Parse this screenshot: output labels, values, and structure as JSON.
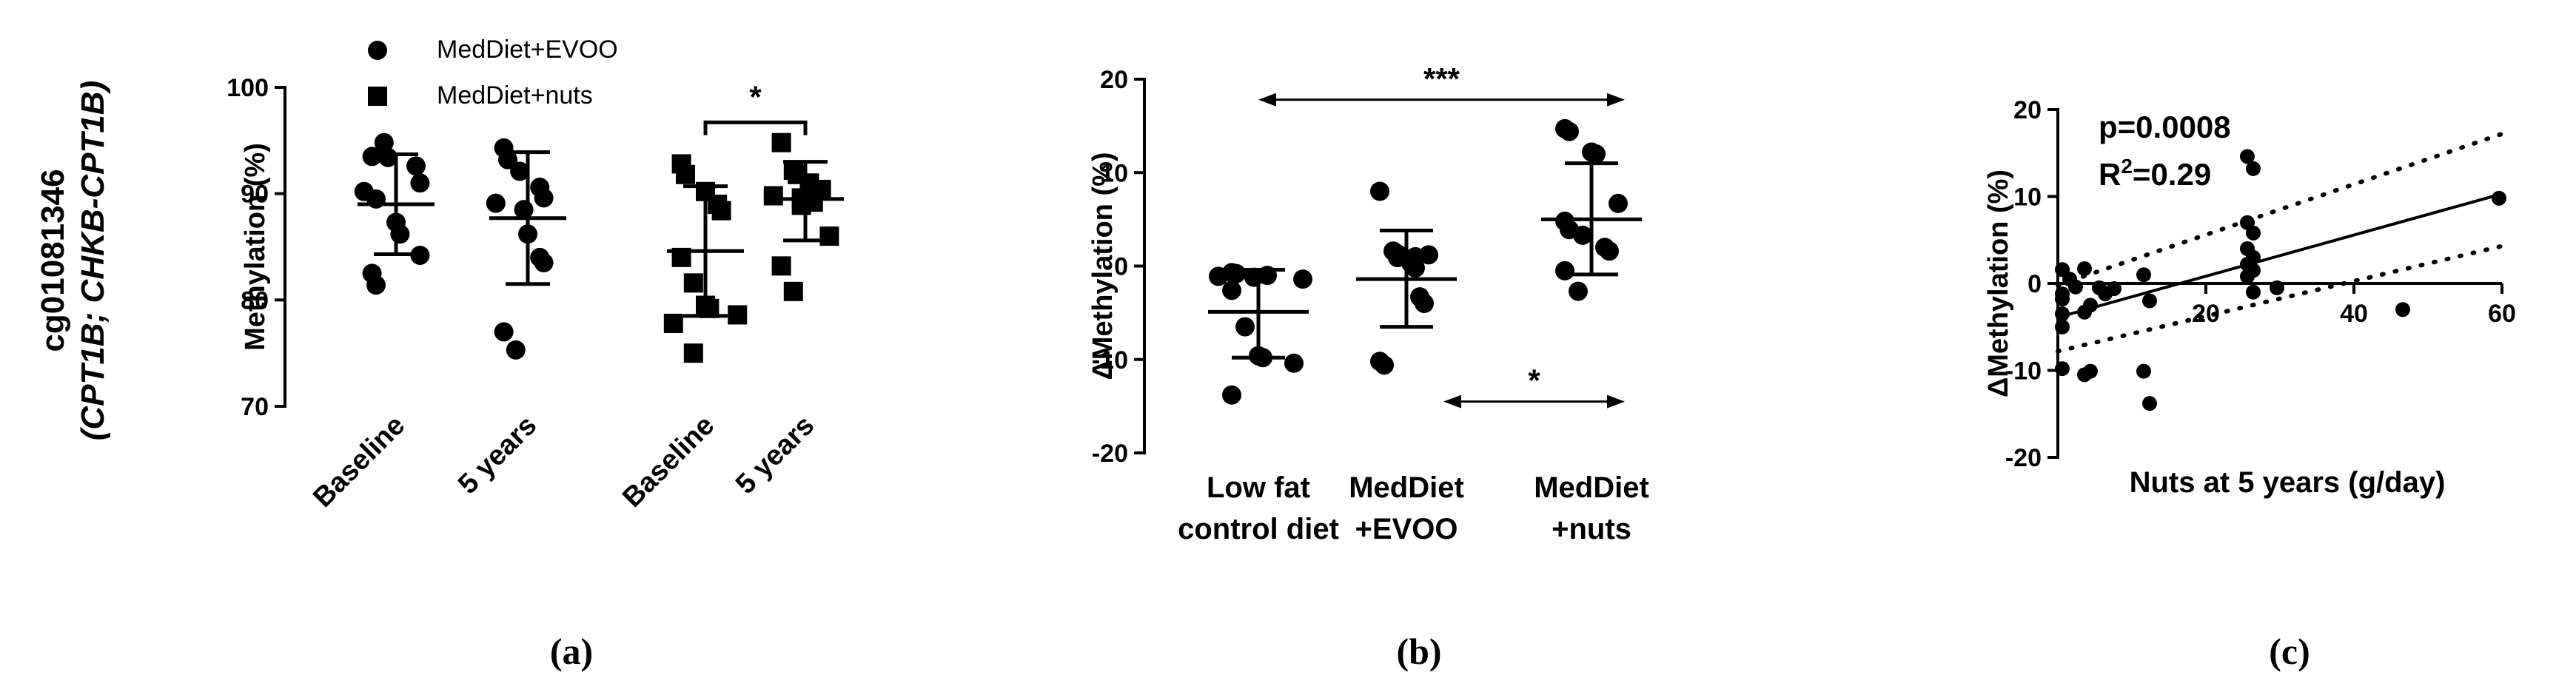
{
  "row_label": {
    "line1": "cg01081346",
    "line2": "(CPT1B; CHKB-CPT1B)"
  },
  "panel_labels": [
    "(a)",
    "(b)",
    "(c)"
  ],
  "chart_data": [
    {
      "id": "a",
      "type": "scatter",
      "title": "",
      "ylabel": "Methylation (%)",
      "xlabel": "",
      "ylim": [
        70,
        100
      ],
      "yticks": [
        70,
        80,
        90,
        100
      ],
      "categories": [
        "Baseline",
        "5 years",
        "Baseline",
        "5 years"
      ],
      "legend": [
        {
          "name": "MedDiet+EVOO",
          "marker": "circle"
        },
        {
          "name": "MedDiet+nuts",
          "marker": "square"
        }
      ],
      "series": [
        {
          "name": "MedDiet+EVOO",
          "category": "Baseline",
          "marker": "circle",
          "mean": 89.0,
          "sd_low": 84.3,
          "sd_high": 93.7,
          "values": [
            93.5,
            94.8,
            93.4,
            92.6,
            91.0,
            90.2,
            89.5,
            87.3,
            86.2,
            84.2,
            82.5,
            81.4
          ]
        },
        {
          "name": "MedDiet+EVOO",
          "category": "5 years",
          "marker": "circle",
          "mean": 87.7,
          "sd_low": 81.5,
          "sd_high": 93.9,
          "values": [
            94.3,
            93.2,
            92.1,
            90.6,
            89.6,
            89.1,
            88.5,
            86.2,
            84.0,
            83.5,
            77.0,
            75.3
          ]
        },
        {
          "name": "MedDiet+nuts",
          "category": "Baseline",
          "marker": "square",
          "mean": 84.6,
          "sd_low": 78.5,
          "sd_high": 90.7,
          "values": [
            92.8,
            91.8,
            90.2,
            89.0,
            88.4,
            84.0,
            81.6,
            79.5,
            79.2,
            78.6,
            77.8,
            75.0
          ]
        },
        {
          "name": "MedDiet+nuts",
          "category": "5 years",
          "marker": "square",
          "mean": 89.5,
          "sd_low": 85.6,
          "sd_high": 93.0,
          "values": [
            94.8,
            92.2,
            91.8,
            91.0,
            90.4,
            89.8,
            89.6,
            89.2,
            88.9,
            86.0,
            83.2,
            80.8
          ]
        }
      ],
      "annotations": [
        {
          "text": "*",
          "between": [
            "Baseline",
            "5 years"
          ],
          "group": "MedDiet+nuts"
        }
      ]
    },
    {
      "id": "b",
      "type": "scatter",
      "title": "",
      "ylabel": "ΔMethylation (%)",
      "xlabel": "",
      "ylim": [
        -20,
        20
      ],
      "yticks": [
        -20,
        -10,
        0,
        10,
        20
      ],
      "categories": [
        "Low fat control diet",
        "MedDiet +EVOO",
        "MedDiet +nuts"
      ],
      "category_lines": [
        [
          "Low fat",
          "control diet"
        ],
        [
          "MedDiet",
          "+EVOO"
        ],
        [
          "MedDiet",
          "+nuts"
        ]
      ],
      "series": [
        {
          "name": "Low fat control diet",
          "marker": "circle",
          "mean": -4.9,
          "sd_low": -9.8,
          "sd_high": -0.4,
          "values": [
            -0.7,
            -0.8,
            -1.0,
            -1.2,
            -1.4,
            -2.6,
            -6.5,
            -9.6,
            -9.8,
            -10.4,
            -13.8,
            -1.1
          ]
        },
        {
          "name": "MedDiet +EVOO",
          "marker": "circle",
          "mean": -1.4,
          "sd_low": -6.5,
          "sd_high": 3.8,
          "values": [
            8.0,
            1.6,
            1.3,
            1.2,
            1.0,
            0.9,
            0.3,
            -0.2,
            -3.3,
            -4.0,
            -10.2,
            -10.6
          ]
        },
        {
          "name": "MedDiet +nuts",
          "marker": "circle",
          "mean": 5.0,
          "sd_low": -0.9,
          "sd_high": 11.0,
          "values": [
            14.7,
            14.4,
            12.2,
            12.0,
            6.7,
            4.8,
            3.9,
            3.3,
            2.0,
            1.6,
            -0.5,
            -2.7
          ]
        }
      ],
      "annotations": [
        {
          "text": "***",
          "between": [
            "Low fat control diet",
            "MedDiet +nuts"
          ]
        },
        {
          "text": "*",
          "between": [
            "MedDiet +EVOO",
            "MedDiet +nuts"
          ]
        }
      ]
    },
    {
      "id": "c",
      "type": "scatter",
      "title": "",
      "xlabel": "Nuts at 5 years (g/day)",
      "ylabel": "ΔMethylation (%)",
      "xlim": [
        0,
        60
      ],
      "xticks": [
        20,
        40,
        60
      ],
      "ylim": [
        -20,
        20
      ],
      "yticks": [
        -20,
        -10,
        0,
        10,
        20
      ],
      "stats": {
        "p_text": "p=0.0008",
        "r2_prefix": "R",
        "r2_sup": "2",
        "r2_suffix": "=0.29"
      },
      "points": [
        {
          "x": 0,
          "y": 1.6
        },
        {
          "x": 0,
          "y": -1.2
        },
        {
          "x": 0,
          "y": -1.8
        },
        {
          "x": 0,
          "y": -3.5
        },
        {
          "x": 0,
          "y": -5.0
        },
        {
          "x": 0,
          "y": -9.8
        },
        {
          "x": 2,
          "y": 0.5
        },
        {
          "x": 2,
          "y": -0.4
        },
        {
          "x": 4,
          "y": 1.7
        },
        {
          "x": 4,
          "y": -2.5
        },
        {
          "x": 4,
          "y": -3.3
        },
        {
          "x": 4,
          "y": -10.1
        },
        {
          "x": 4,
          "y": -10.5
        },
        {
          "x": 6,
          "y": -0.5
        },
        {
          "x": 6,
          "y": -1.2
        },
        {
          "x": 8,
          "y": -0.6
        },
        {
          "x": 12,
          "y": 1.0
        },
        {
          "x": 12,
          "y": -2.0
        },
        {
          "x": 12,
          "y": -10.1
        },
        {
          "x": 12,
          "y": -13.8
        },
        {
          "x": 26,
          "y": 14.6
        },
        {
          "x": 26,
          "y": 13.2
        },
        {
          "x": 26,
          "y": 7.0
        },
        {
          "x": 26,
          "y": 5.8
        },
        {
          "x": 26,
          "y": 4.0
        },
        {
          "x": 26,
          "y": 3.0
        },
        {
          "x": 26,
          "y": 2.2
        },
        {
          "x": 26,
          "y": 1.5
        },
        {
          "x": 26,
          "y": 0.8
        },
        {
          "x": 26,
          "y": -1.0
        },
        {
          "x": 30,
          "y": -0.5
        },
        {
          "x": 47,
          "y": -3.0
        },
        {
          "x": 60,
          "y": 9.8
        }
      ],
      "fit_line": {
        "x": [
          0,
          60
        ],
        "y": [
          -3.9,
          10.3
        ]
      },
      "ci_upper": {
        "x": [
          0,
          60
        ],
        "y": [
          -0.2,
          17.2
        ]
      },
      "ci_lower": {
        "x": [
          0,
          60
        ],
        "y": [
          -7.8,
          4.3
        ]
      }
    }
  ]
}
